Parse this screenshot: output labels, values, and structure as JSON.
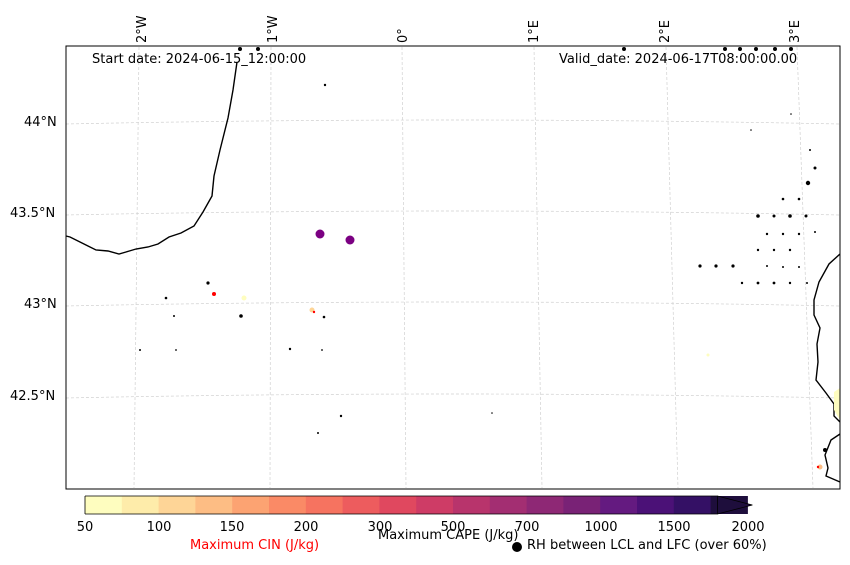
{
  "header": {
    "start_date": "Start date: 2024-06-15_12:00:00",
    "valid_date": "Valid_date: 2024-06-17T08:00:00.00"
  },
  "axes": {
    "lon_labels": [
      "2°W",
      "1°W",
      "0°",
      "1°E",
      "2°E",
      "3°E"
    ],
    "lat_labels": [
      "44°N",
      "43.5°N",
      "43°N",
      "42.5°N"
    ]
  },
  "colorbar": {
    "levels": [
      "50",
      "100",
      "150",
      "200",
      "300",
      "500",
      "700",
      "1000",
      "1500",
      "2000"
    ],
    "colors": [
      "#fefdbf",
      "#feecaa",
      "#fed597",
      "#fdbd84",
      "#fca372",
      "#fa8a66",
      "#f67360",
      "#ed5c5e",
      "#e0485f",
      "#ce3c66",
      "#b8346c",
      "#a32e72",
      "#8e2875",
      "#792276",
      "#641a80",
      "#4b1177",
      "#341065",
      "#1e0e3c"
    ],
    "cin_label": "Maximum CIN (J/kg)",
    "cape_label": "Maximum CAPE (J/kg)",
    "rh_label": "RH between LCL and LFC (over 60%)",
    "cin_color": "#ff0000"
  },
  "markers": {
    "rh_color": "#7b0082",
    "coast_color": "#000000"
  }
}
